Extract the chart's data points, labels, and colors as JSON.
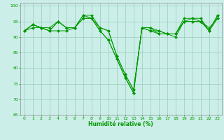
{
  "xlabel": "Humidité relative (%)",
  "background_color": "#cceee8",
  "grid_color": "#99ccbb",
  "line_color": "#009900",
  "xlim": [
    -0.5,
    23.5
  ],
  "ylim": [
    65,
    101
  ],
  "yticks": [
    65,
    70,
    75,
    80,
    85,
    90,
    95,
    100
  ],
  "xticks": [
    0,
    1,
    2,
    3,
    4,
    5,
    6,
    7,
    8,
    9,
    10,
    11,
    12,
    13,
    14,
    15,
    16,
    17,
    18,
    19,
    20,
    21,
    22,
    23
  ],
  "series": [
    [
      92,
      94,
      93,
      92,
      95,
      93,
      93,
      97,
      96,
      92,
      89,
      83,
      77,
      72,
      93,
      92,
      92,
      91,
      91,
      95,
      95,
      95,
      93,
      96
    ],
    [
      92,
      93,
      93,
      92,
      92,
      92,
      93,
      96,
      96,
      92,
      89,
      83,
      77,
      72,
      93,
      92,
      91,
      91,
      91,
      95,
      95,
      95,
      92,
      96
    ],
    [
      92,
      94,
      93,
      93,
      95,
      93,
      93,
      97,
      97,
      93,
      92,
      84,
      78,
      73,
      93,
      93,
      91,
      91,
      90,
      95,
      96,
      95,
      92,
      97
    ],
    [
      92,
      94,
      93,
      92,
      95,
      93,
      93,
      96,
      96,
      93,
      92,
      84,
      78,
      73,
      93,
      93,
      92,
      91,
      91,
      96,
      96,
      96,
      92,
      97
    ]
  ],
  "xlabel_fontsize": 5.5,
  "tick_fontsize": 4.5,
  "linewidth": 0.7,
  "markersize": 2.0
}
